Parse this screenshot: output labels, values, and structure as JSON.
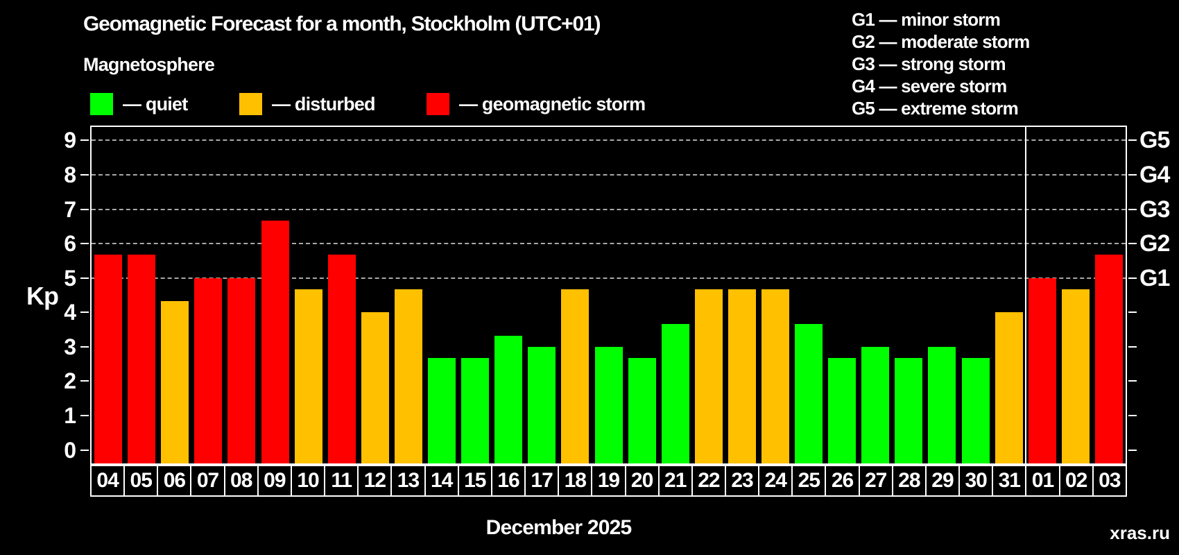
{
  "header": {
    "title": "Geomagnetic Forecast for a month, Stockholm (UTC+01)",
    "subtitle": "Magnetosphere"
  },
  "legend": {
    "quiet": "— quiet",
    "disturbed": "— disturbed",
    "storm": "— geomagnetic storm"
  },
  "g_legend": [
    "G1 — minor storm",
    "G2 — moderate storm",
    "G3 — strong storm",
    "G4 — severe storm",
    "G5 — extreme storm"
  ],
  "colors": {
    "quiet": "#00ff00",
    "disturbed": "#ffc000",
    "storm": "#ff0000",
    "grid": "#a9a9a9",
    "axis": "#ffffff",
    "watermark": "#7a7a7a",
    "background": "#000000"
  },
  "watermark": "xras.ru",
  "chart_data": {
    "type": "bar",
    "title": "Geomagnetic Forecast for a month, Stockholm (UTC+01)",
    "xlabel": "December 2025",
    "ylabel": "Kp",
    "ylim": [
      0,
      9
    ],
    "grid": "dashed horizontal at Kp 5-9 only",
    "legend_position": "top",
    "categories": [
      "04",
      "05",
      "06",
      "07",
      "08",
      "09",
      "10",
      "11",
      "12",
      "13",
      "14",
      "15",
      "16",
      "17",
      "18",
      "19",
      "20",
      "21",
      "22",
      "23",
      "24",
      "25",
      "26",
      "27",
      "28",
      "29",
      "30",
      "31",
      "01",
      "02",
      "03"
    ],
    "values": [
      5.67,
      5.67,
      4.33,
      5.0,
      5.0,
      6.67,
      4.67,
      5.67,
      4.0,
      4.67,
      2.67,
      2.67,
      3.33,
      3.0,
      4.67,
      3.0,
      2.67,
      3.67,
      4.67,
      4.67,
      4.67,
      3.67,
      2.67,
      3.0,
      2.67,
      3.0,
      2.67,
      4.0,
      5.0,
      4.67,
      5.67
    ],
    "states": [
      "storm",
      "storm",
      "disturbed",
      "storm",
      "storm",
      "storm",
      "disturbed",
      "storm",
      "disturbed",
      "disturbed",
      "quiet",
      "quiet",
      "quiet",
      "quiet",
      "disturbed",
      "quiet",
      "quiet",
      "quiet",
      "disturbed",
      "disturbed",
      "disturbed",
      "quiet",
      "quiet",
      "quiet",
      "quiet",
      "quiet",
      "quiet",
      "disturbed",
      "storm",
      "disturbed",
      "storm"
    ],
    "month_boundary_index": 28,
    "yticks": [
      0,
      1,
      2,
      3,
      4,
      5,
      6,
      7,
      8,
      9
    ],
    "gridlines_kp": [
      5,
      6,
      7,
      8,
      9
    ],
    "right_axis": [
      {
        "label": "G5",
        "kp": 9
      },
      {
        "label": "G4",
        "kp": 8
      },
      {
        "label": "G3",
        "kp": 7
      },
      {
        "label": "G2",
        "kp": 6
      },
      {
        "label": "G1",
        "kp": 5
      }
    ]
  }
}
